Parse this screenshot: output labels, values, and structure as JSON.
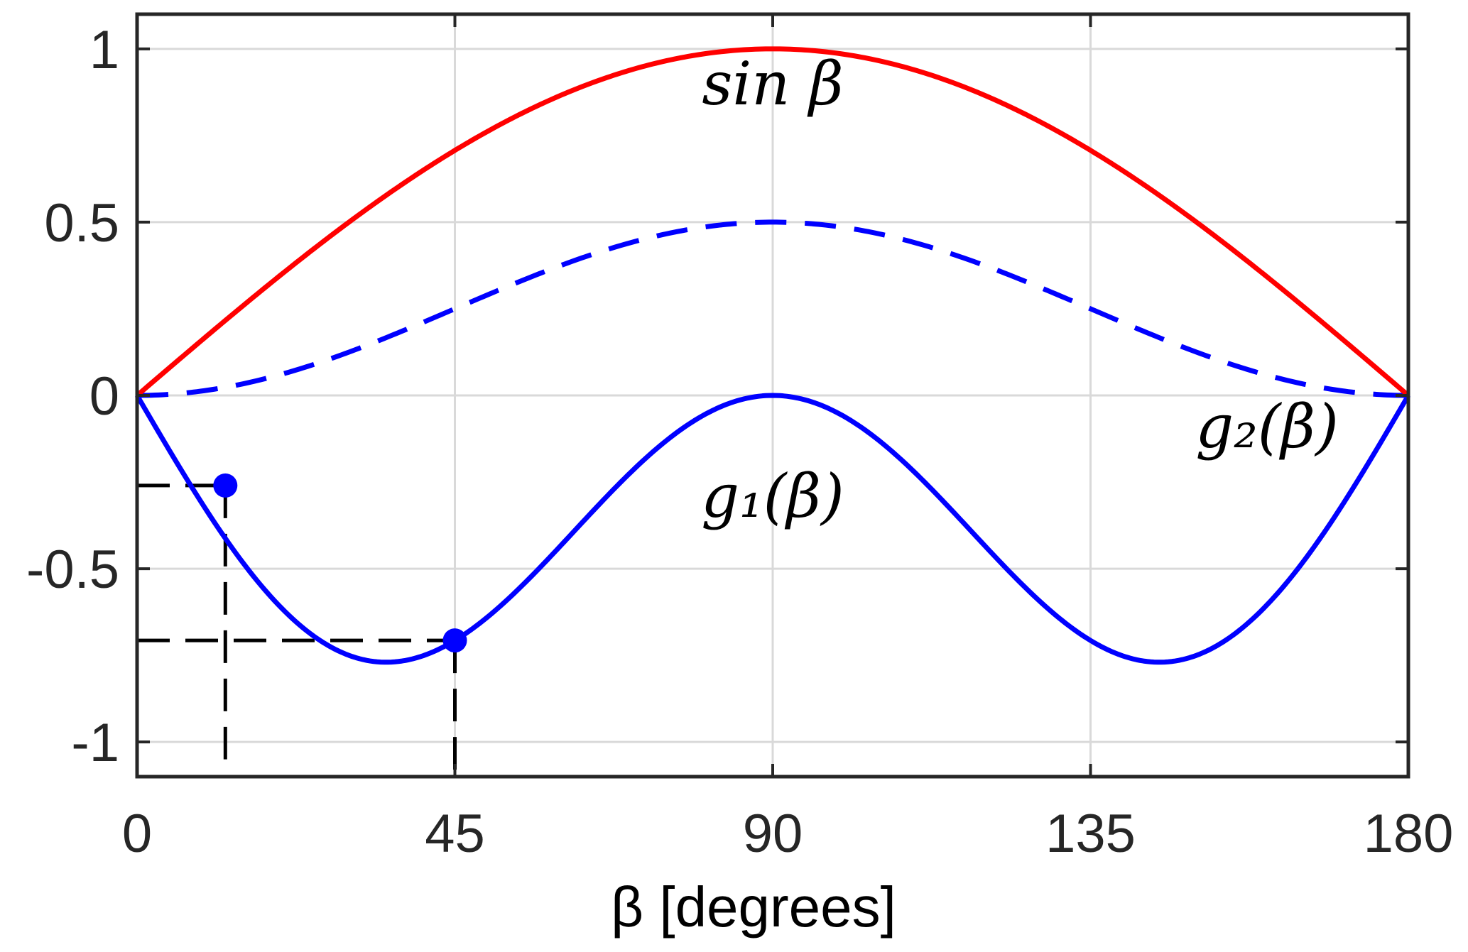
{
  "chart_data": {
    "type": "line",
    "xlabel": "β [degrees]",
    "ylabel": "",
    "xlim": [
      0,
      180
    ],
    "ylim": [
      -1.1,
      1.1
    ],
    "x_ticks": [
      0,
      45,
      90,
      135,
      180
    ],
    "x_tick_labels": [
      "0",
      "45",
      "90",
      "135",
      "180"
    ],
    "y_ticks": [
      1,
      0.5,
      0,
      -0.5,
      -1
    ],
    "y_tick_labels": [
      "1",
      "0.5",
      "0",
      "-0.5",
      "-1"
    ],
    "grid": true,
    "colors": {
      "sin": "#ff0000",
      "g": "#0000ff",
      "guide": "#000000",
      "grid": "#d9d9d9",
      "frame": "#262626"
    },
    "series": [
      {
        "key": "sin",
        "label": "sin β",
        "formula": "sin(b)",
        "style": "solid",
        "color": "#ff0000"
      },
      {
        "key": "g1",
        "label": "g₁(β)",
        "formula": "-sin(2b)*cos(b)",
        "style": "solid",
        "color": "#0000ff"
      },
      {
        "key": "g2",
        "label": "g₂(β)",
        "formula": "0.5*sin(b)^2",
        "style": "dashed",
        "color": "#0000ff"
      }
    ],
    "annotations": [
      {
        "text": "sin β",
        "x": 90,
        "y": 0.84
      },
      {
        "text": "g₁(β)",
        "x": 90,
        "y": -0.35
      },
      {
        "text": "g₂(β)",
        "x": 160,
        "y": -0.15
      }
    ],
    "markers": [
      {
        "x": 12.5,
        "y": -0.26
      },
      {
        "x": 45,
        "y": -0.707
      }
    ],
    "guide_lines": [
      {
        "from": [
          0,
          -0.26
        ],
        "to": [
          12.5,
          -0.26
        ]
      },
      {
        "from": [
          12.5,
          -0.26
        ],
        "to": [
          12.5,
          -1.05
        ]
      },
      {
        "from": [
          0,
          -0.707
        ],
        "to": [
          45,
          -0.707
        ]
      },
      {
        "from": [
          45,
          -0.707
        ],
        "to": [
          45,
          -1.1
        ]
      }
    ]
  }
}
